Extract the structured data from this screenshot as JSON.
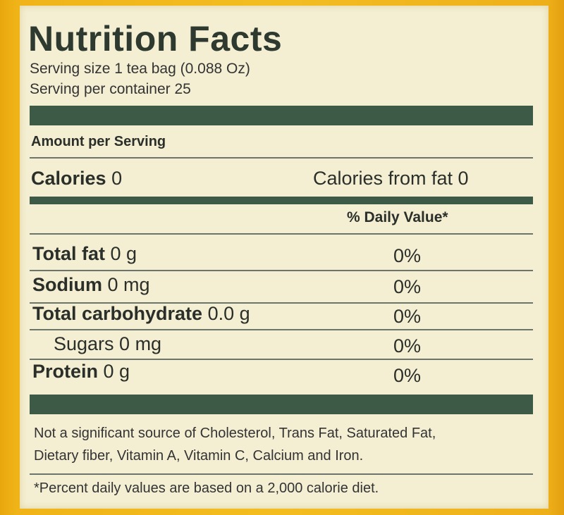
{
  "label": {
    "title": "Nutrition Facts",
    "serving_size": "Serving size 1 tea bag (0.088 Oz)",
    "servings_per_container": "Serving per container 25",
    "amount_per_serving": "Amount per Serving",
    "calories_label": "Calories",
    "calories_value": " 0",
    "calories_from_fat": "Calories from fat 0",
    "daily_value_header": "% Daily Value*",
    "nutrients": [
      {
        "name": "Total fat",
        "amount": " 0 g",
        "dv": "0%"
      },
      {
        "name": "Sodium",
        "amount": " 0 mg",
        "dv": "0%"
      },
      {
        "name": "Total carbohydrate",
        "amount": " 0.0 g",
        "dv": "0%"
      },
      {
        "name": "Sugars 0 mg",
        "amount": "",
        "dv": "0%"
      },
      {
        "name": "Protein",
        "amount": " 0 g",
        "dv": "0%"
      }
    ],
    "footnote_line1": "Not a significant source of Cholesterol, Trans Fat, Saturated Fat,",
    "footnote_line2": "Dietary fiber, Vitamin A, Vitamin C, Calcium and Iron.",
    "daily_value_note": "*Percent daily values are based on a 2,000 calorie diet."
  },
  "colors": {
    "band": "#3c5a45",
    "panel": "#f4efd3",
    "border": "#f0b418"
  }
}
